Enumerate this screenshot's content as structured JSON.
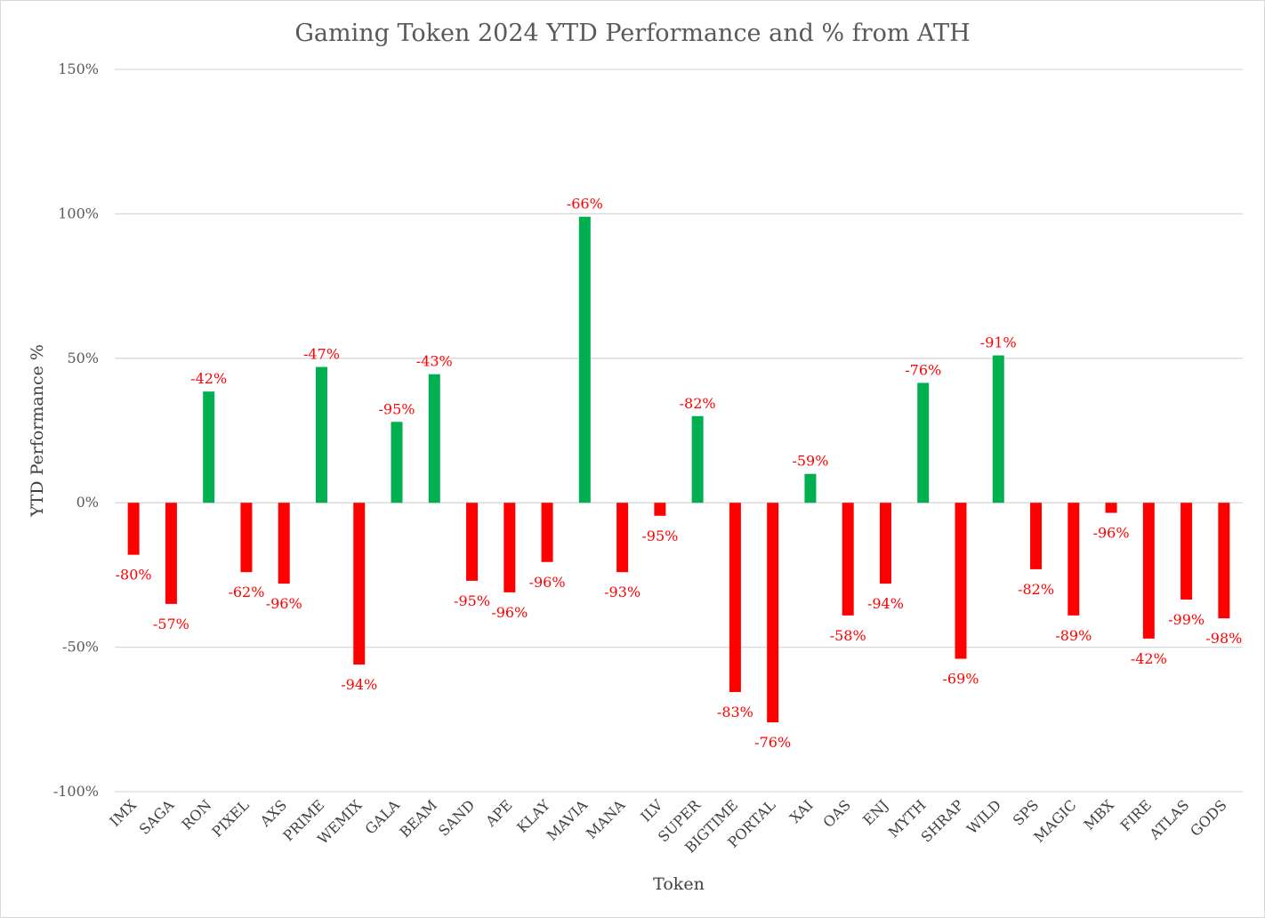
{
  "chart_data": {
    "type": "bar",
    "title": "Gaming Token 2024 YTD Performance and % from ATH",
    "xlabel": "Token",
    "ylabel": "YTD Performance %",
    "ylim": [
      -100,
      150
    ],
    "yticks": [
      -100,
      -50,
      0,
      50,
      100,
      150
    ],
    "ytick_labels": [
      "-100%",
      "-50%",
      "0%",
      "50%",
      "100%",
      "150%"
    ],
    "grid": true,
    "legend": "none",
    "colors": {
      "positive": "#00b050",
      "negative": "#ff0000",
      "data_label": "#ff0000",
      "grid": "#d9d9d9"
    },
    "categories": [
      "IMX",
      "SAGA",
      "RON",
      "PIXEL",
      "AXS",
      "PRIME",
      "WEMIX",
      "GALA",
      "BEAM",
      "SAND",
      "APE",
      "KLAY",
      "MAVIA",
      "MANA",
      "ILV",
      "SUPER",
      "BIGTIME",
      "PORTAL",
      "XAI",
      "OAS",
      "ENJ",
      "MYTH",
      "SHRAP",
      "WILD",
      "SPS",
      "MAGIC",
      "MBX",
      "FIRE",
      "ATLAS",
      "GODS"
    ],
    "values": [
      -18,
      -35,
      38.5,
      -24,
      -28,
      47,
      -56,
      28,
      44.5,
      -27,
      -31,
      -20.5,
      99,
      -24,
      -4.5,
      30,
      -65.5,
      -76,
      10,
      -39,
      -28,
      41.5,
      -54,
      51,
      -23,
      -39,
      -3.5,
      -47,
      -33.5,
      -40
    ],
    "data_labels": [
      "-80%",
      "-57%",
      "-42%",
      "-62%",
      "-96%",
      "-47%",
      "-94%",
      "-95%",
      "-43%",
      "-95%",
      "-96%",
      "-96%",
      "-66%",
      "-93%",
      "-95%",
      "-82%",
      "-83%",
      "-76%",
      "-59%",
      "-58%",
      "-94%",
      "-76%",
      "-69%",
      "-91%",
      "-82%",
      "-89%",
      "-96%",
      "-42%",
      "-99%",
      "-98%"
    ]
  }
}
